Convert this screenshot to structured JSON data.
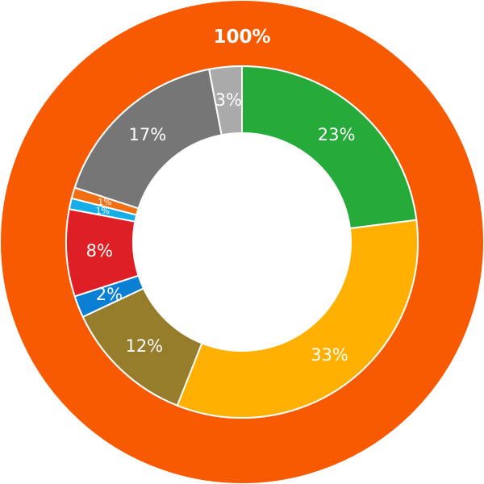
{
  "chart_data": {
    "type": "pie",
    "variant": "nested-donut",
    "outer_ring": {
      "slices": [
        {
          "value": 100,
          "label": "100%",
          "color": "#f75a00"
        }
      ]
    },
    "inner_ring": {
      "slices": [
        {
          "value": 23,
          "label": "23%",
          "color": "#26ab3a"
        },
        {
          "value": 33,
          "label": "33%",
          "color": "#ffb000"
        },
        {
          "value": 12,
          "label": "12%",
          "color": "#967d2b"
        },
        {
          "value": 2,
          "label": "2%",
          "color": "#0b7fd4"
        },
        {
          "value": 8,
          "label": "8%",
          "color": "#de1f26"
        },
        {
          "value": 1,
          "label": "1%",
          "color": "#15aee8"
        },
        {
          "value": 1,
          "label": "1%",
          "color": "#f26e12"
        },
        {
          "value": 17,
          "label": "17%",
          "color": "#767676"
        },
        {
          "value": 3,
          "label": "3%",
          "color": "#aaaaaa"
        }
      ]
    }
  }
}
